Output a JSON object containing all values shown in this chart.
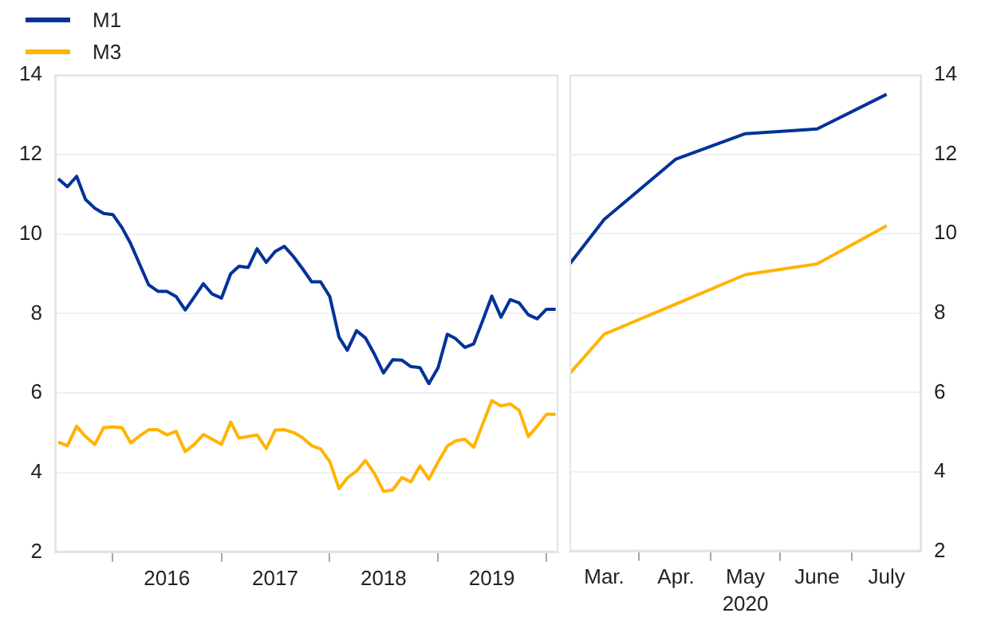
{
  "chart_data": [
    {
      "type": "line",
      "legend": "top left",
      "grid": "y",
      "x": [
        "2015-07",
        "2015-08",
        "2015-09",
        "2015-10",
        "2015-11",
        "2015-12",
        "2016-01",
        "2016-02",
        "2016-03",
        "2016-04",
        "2016-05",
        "2016-06",
        "2016-07",
        "2016-08",
        "2016-09",
        "2016-10",
        "2016-11",
        "2016-12",
        "2017-01",
        "2017-02",
        "2017-03",
        "2017-04",
        "2017-05",
        "2017-06",
        "2017-07",
        "2017-08",
        "2017-09",
        "2017-10",
        "2017-11",
        "2017-12",
        "2018-01",
        "2018-02",
        "2018-03",
        "2018-04",
        "2018-05",
        "2018-06",
        "2018-07",
        "2018-08",
        "2018-09",
        "2018-10",
        "2018-11",
        "2018-12",
        "2019-01",
        "2019-02",
        "2019-03",
        "2019-04",
        "2019-05",
        "2019-06",
        "2019-07",
        "2019-08",
        "2019-09",
        "2019-10",
        "2019-11",
        "2019-12",
        "2020-01",
        "2020-02"
      ],
      "xlim": [
        "2015-06-20",
        "2020-02-10"
      ],
      "xticks": [
        {
          "value": "2016-01",
          "label": null
        },
        {
          "value": "2016-07",
          "label": "2016"
        },
        {
          "value": "2017-01",
          "label": null
        },
        {
          "value": "2017-07",
          "label": "2017"
        },
        {
          "value": "2018-01",
          "label": null
        },
        {
          "value": "2018-07",
          "label": "2018"
        },
        {
          "value": "2019-01",
          "label": null
        },
        {
          "value": "2019-07",
          "label": "2019"
        },
        {
          "value": "2020-01",
          "label": null
        }
      ],
      "ylim": [
        2,
        14
      ],
      "yticks": [
        2,
        4,
        6,
        8,
        10,
        12,
        14
      ],
      "series": [
        {
          "name": "M1",
          "color": "#003299",
          "values": [
            11.39,
            11.19,
            11.45,
            10.87,
            10.65,
            10.52,
            10.49,
            10.16,
            9.76,
            9.23,
            8.72,
            8.56,
            8.56,
            8.43,
            8.09,
            8.41,
            8.75,
            8.49,
            8.39,
            9.0,
            9.19,
            9.16,
            9.63,
            9.29,
            9.56,
            9.69,
            9.43,
            9.13,
            8.8,
            8.8,
            8.43,
            7.41,
            7.08,
            7.57,
            7.39,
            6.97,
            6.51,
            6.84,
            6.83,
            6.67,
            6.64,
            6.24,
            6.64,
            7.48,
            7.37,
            7.15,
            7.24,
            7.84,
            8.44,
            7.91,
            8.35,
            8.27,
            7.97,
            7.87,
            8.11,
            8.11
          ]
        },
        {
          "name": "M3",
          "color": "#ffb400",
          "values": [
            4.77,
            4.68,
            5.17,
            4.91,
            4.71,
            5.13,
            5.15,
            5.13,
            4.75,
            4.93,
            5.08,
            5.08,
            4.95,
            5.04,
            4.53,
            4.71,
            4.96,
            4.84,
            4.71,
            5.27,
            4.87,
            4.91,
            4.95,
            4.61,
            5.07,
            5.08,
            5.01,
            4.88,
            4.68,
            4.6,
            4.28,
            3.6,
            3.87,
            4.04,
            4.31,
            3.97,
            3.53,
            3.57,
            3.88,
            3.77,
            4.17,
            3.84,
            4.27,
            4.67,
            4.8,
            4.84,
            4.64,
            5.24,
            5.81,
            5.68,
            5.73,
            5.57,
            4.91,
            5.17,
            5.47,
            5.47
          ]
        }
      ]
    },
    {
      "type": "line",
      "grid": "y",
      "xlabel": "2020",
      "x": [
        "2020-02-15",
        "2020-03",
        "2020-04",
        "2020-05",
        "2020-06",
        "2020-07"
      ],
      "xlim": [
        "2020-02-15",
        "2020-07-16"
      ],
      "xticks": [
        {
          "value": "2020-03",
          "label": "Mar."
        },
        {
          "value": "2020-03-16",
          "label": null
        },
        {
          "value": "2020-04",
          "label": "Apr."
        },
        {
          "value": "2020-04-16",
          "label": null
        },
        {
          "value": "2020-05",
          "label": "May"
        },
        {
          "value": "2020-05-16",
          "label": null
        },
        {
          "value": "2020-06",
          "label": "June"
        },
        {
          "value": "2020-06-16",
          "label": null
        },
        {
          "value": "2020-07",
          "label": "July"
        }
      ],
      "ylim": [
        2,
        14
      ],
      "yticks": [
        2,
        4,
        6,
        8,
        10,
        12,
        14
      ],
      "series": [
        {
          "color": "#003299",
          "values": [
            9.23,
            10.36,
            11.88,
            12.52,
            12.64,
            13.51
          ]
        },
        {
          "color": "#ffb400",
          "values": [
            6.47,
            7.47,
            8.23,
            8.97,
            9.24,
            10.2
          ]
        }
      ]
    }
  ]
}
